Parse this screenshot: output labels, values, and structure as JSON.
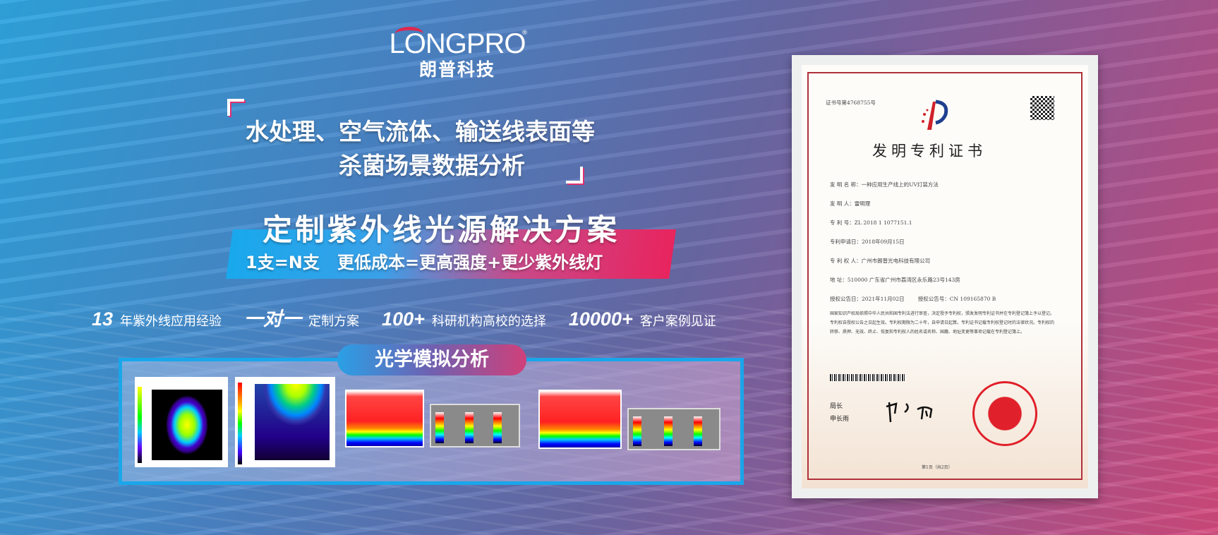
{
  "logo": {
    "brand": "LONGPRO",
    "reg_mark": "®",
    "cn_name": "朗普科技"
  },
  "headline": {
    "line1": "水处理、空气流体、输送线表面等",
    "line2": "杀菌场景数据分析"
  },
  "solution": {
    "title": "定制紫外线光源解决方案",
    "subtitle": "1支=N支   更低成本=更高强度+更少紫外线灯"
  },
  "stats": [
    {
      "value": "13",
      "label": "年紫外线应用经验"
    },
    {
      "value": "一对一",
      "label": "定制方案"
    },
    {
      "value": "100+",
      "label": "科研机构高校的选择"
    },
    {
      "value": "10000+",
      "label": "客户案例见证"
    }
  ],
  "analysis": {
    "title": "光学模拟分析"
  },
  "certificate": {
    "number": "证书号第4768755号",
    "title": "发明专利证书",
    "fields": [
      "发 明 名 称：一种应用生产线上的UV灯装方法",
      "发   明   人：雷明理",
      "专   利   号：ZL 2018 1 1077151.1",
      "专利申请日：2018年09月15日",
      "专 利 权 人：广州市朗普光电科技有限公司",
      "地         址：510000 广东省广州市荔湾区永乐路23号143房",
      "授权公告日：2021年11月02日        授权公告号：CN 109165870 B"
    ],
    "body": "国家知识产权局依照中华人民共和国专利法进行审查，决定授予专利权，颁发发明专利证书并在专利登记簿上予以登记。专利权自授权公告之日起生效。专利权期限为二十年，自申请日起算。专利证书记载专利权登记时的法律状况。专利权的转移、质押、无效、终止、恢复和专利权人的姓名或名称、国籍、地址变更等事项记载在专利登记簿上。",
    "signer_title": "局长",
    "signer_name": "申长雨",
    "page": "第1页（共2页）"
  }
}
